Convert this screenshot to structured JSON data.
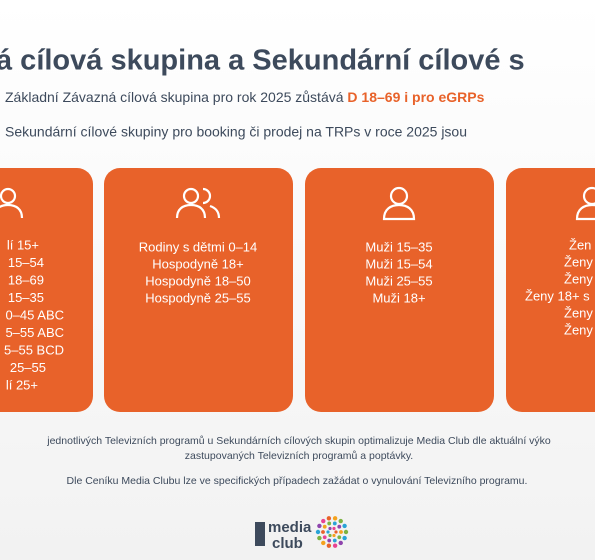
{
  "header": {
    "title": "á cílová skupina a Sekundární cílové s",
    "intro": "Základní Závazná cílová skupina pro rok 2025 zůstává",
    "intro_highlight": "D 18–69 i pro eGRPs",
    "subtitle": "Sekundární cílové skupiny pro booking či prodej na TRPs v roce 2025 jsou"
  },
  "cards": [
    {
      "lines": [
        "lí 15+",
        "15–54",
        "18–69",
        "15–35",
        "0–45 ABC",
        "5–55 ABC",
        "5–55 BCD",
        "25–55",
        "lí 25+"
      ]
    },
    {
      "lines": [
        "Rodiny s dětmi 0–14",
        "Hospodyně 18+",
        "Hospodyně 18–50",
        "Hospodyně 25–55"
      ]
    },
    {
      "lines": [
        "Muži 15–35",
        "Muži 15–54",
        "Muži 25–55",
        "Muži 18+"
      ]
    },
    {
      "lines": [
        "Žen",
        "Ženy",
        "Ženy",
        "Ženy 18+ s",
        "Ženy",
        "Ženy"
      ]
    }
  ],
  "footer": [
    "jednotlivých Televizních programů u Sekundárních cílových skupin optimalizuje Media Club dle aktuální výko",
    "zastupovaných Televizních programů a poptávky.",
    "Dle Ceníku Media Clubu lze ve specifických případech zažádat o vynulování Televizního programu."
  ],
  "logo": {
    "line1": "media",
    "line2": "club"
  }
}
